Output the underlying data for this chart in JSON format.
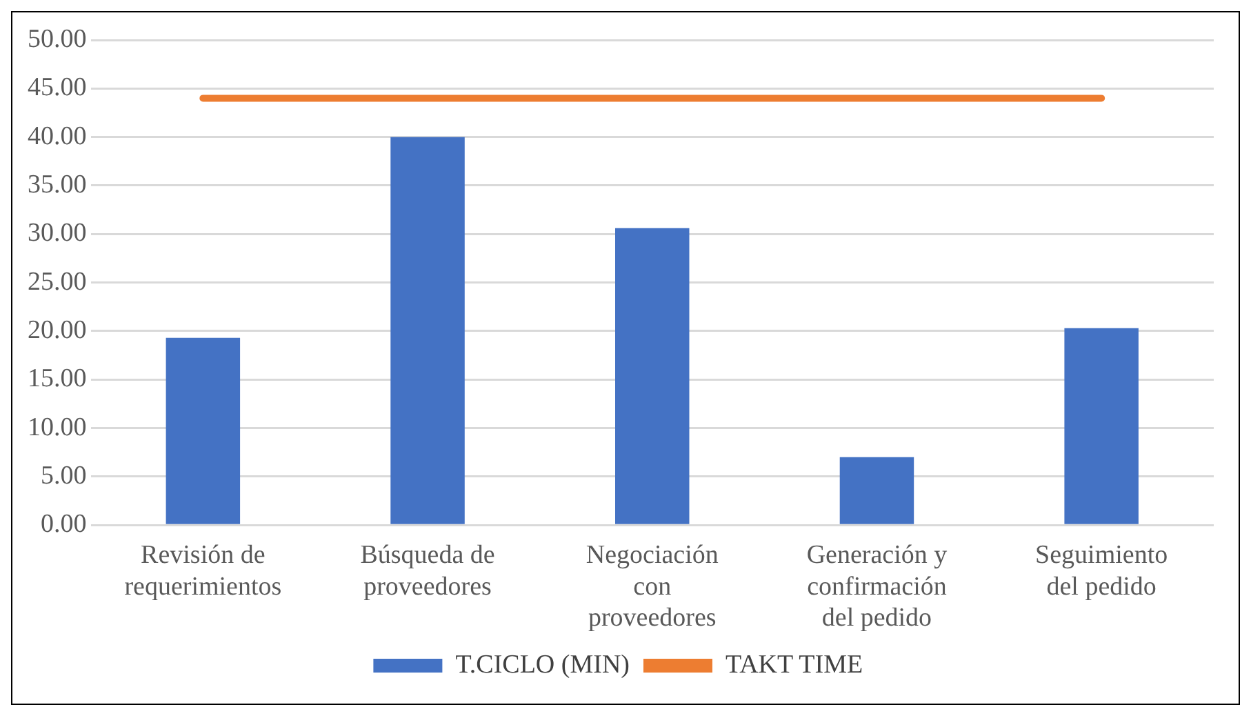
{
  "chart_data": {
    "type": "bar",
    "categories": [
      "Revisión de requerimientos",
      "Búsqueda de proveedores",
      "Negociación con proveedores",
      "Generación y confirmación del pedido",
      "Seguimiento del pedido"
    ],
    "series": [
      {
        "name": "T.CICLO (MIN)",
        "color": "#4472c4",
        "values": [
          19.3,
          40,
          30.6,
          7,
          20.3
        ]
      },
      {
        "name": "TAKT TIME",
        "type": "line",
        "color": "#ed7d31",
        "values": [
          44,
          44,
          44,
          44,
          44
        ]
      }
    ],
    "ylim": [
      0,
      50
    ],
    "yticks": [
      {
        "value": 0,
        "label": "0.00"
      },
      {
        "value": 5,
        "label": "5.00"
      },
      {
        "value": 10,
        "label": "10.00"
      },
      {
        "value": 15,
        "label": "15.00"
      },
      {
        "value": 20,
        "label": "20.00"
      },
      {
        "value": 25,
        "label": "25.00"
      },
      {
        "value": 30,
        "label": "30.00"
      },
      {
        "value": 35,
        "label": "35.00"
      },
      {
        "value": 40,
        "label": "40.00"
      },
      {
        "value": 45,
        "label": "45.00"
      },
      {
        "value": 50,
        "label": "50.00"
      }
    ],
    "grid": "y",
    "legend": "bottom",
    "marker": "none"
  }
}
